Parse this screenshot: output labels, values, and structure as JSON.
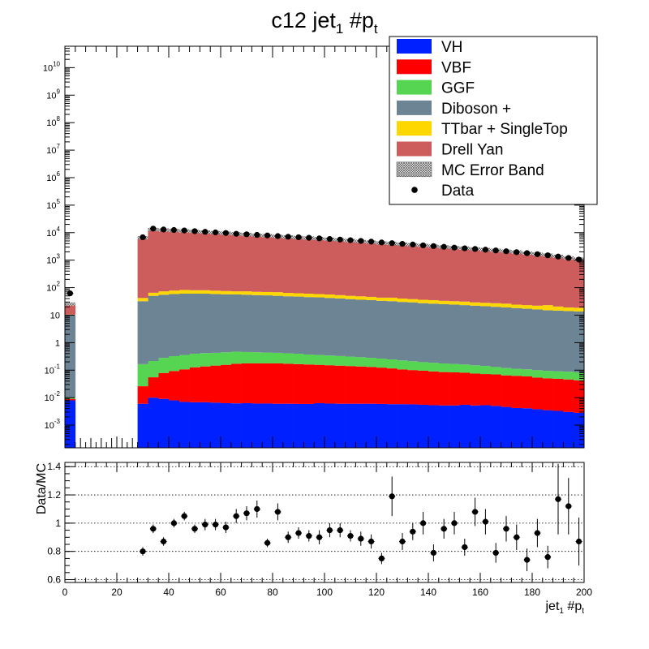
{
  "chart_data": {
    "type": "bar",
    "title": {
      "main": "c12 jet",
      "sub": "1",
      "rest": " #p",
      "sub2": "t"
    },
    "xlabel": {
      "main": "jet",
      "sub": "1",
      "rest": " #p",
      "sub2": "t"
    },
    "ratio_ylabel": "Data/MC",
    "x_ticks": [
      "0",
      "20",
      "40",
      "60",
      "80",
      "100",
      "120",
      "140",
      "160",
      "180",
      "200"
    ],
    "ratio_ticks": [
      "0.6",
      "0.8",
      "1",
      "1.2",
      "1.4"
    ],
    "log_ticks": [
      {
        "value": 0.001,
        "base": "10",
        "exp": "-3"
      },
      {
        "value": 0.01,
        "base": "10",
        "exp": "-2"
      },
      {
        "value": 0.1,
        "base": "10",
        "exp": "-1"
      },
      {
        "value": 1,
        "base": "1",
        "exp": ""
      },
      {
        "value": 10,
        "base": "10",
        "exp": ""
      },
      {
        "value": 100,
        "base": "10",
        "exp": "2"
      },
      {
        "value": 1000,
        "base": "10",
        "exp": "3"
      },
      {
        "value": 10000,
        "base": "10",
        "exp": "4"
      },
      {
        "value": 100000,
        "base": "10",
        "exp": "5"
      },
      {
        "value": 1000000,
        "base": "10",
        "exp": "6"
      },
      {
        "value": 10000000,
        "base": "10",
        "exp": "7"
      },
      {
        "value": 100000000,
        "base": "10",
        "exp": "8"
      },
      {
        "value": 1000000000,
        "base": "10",
        "exp": "9"
      },
      {
        "value": 10000000000,
        "base": "10",
        "exp": "10"
      }
    ],
    "xlim": [
      0,
      200
    ],
    "ylim_log": [
      0.00015,
      60000000000
    ],
    "ratio_ylim": [
      0.58,
      1.43
    ],
    "log_scale": true,
    "grid": {
      "main": false,
      "ratio": "dotted-horizontal"
    },
    "legend_position": "top-right",
    "bin_width": 4,
    "bins_x": [
      2,
      6,
      10,
      14,
      18,
      22,
      26,
      30,
      34,
      38,
      42,
      46,
      50,
      54,
      58,
      62,
      66,
      70,
      74,
      78,
      82,
      86,
      90,
      94,
      98,
      102,
      106,
      110,
      114,
      118,
      122,
      126,
      130,
      134,
      138,
      142,
      146,
      150,
      154,
      158,
      162,
      166,
      170,
      174,
      178,
      182,
      186,
      190,
      194,
      198
    ],
    "series": [
      {
        "name": "VH",
        "color": "#0020ff",
        "values": [
          0.008,
          0,
          0,
          0,
          0,
          0,
          0,
          0.006,
          0.01,
          0.009,
          0.008,
          0.007,
          0.0068,
          0.0068,
          0.0066,
          0.0063,
          0.0062,
          0.0063,
          0.0061,
          0.0061,
          0.006,
          0.006,
          0.0059,
          0.0059,
          0.0063,
          0.0061,
          0.006,
          0.006,
          0.006,
          0.006,
          0.0059,
          0.0058,
          0.0058,
          0.0057,
          0.0055,
          0.0053,
          0.0052,
          0.0052,
          0.0055,
          0.0052,
          0.0053,
          0.005,
          0.0046,
          0.0042,
          0.0041,
          0.0038,
          0.0035,
          0.0033,
          0.003,
          0.0028
        ]
      },
      {
        "name": "VBF",
        "color": "#ff0000",
        "values": [
          0.001,
          0,
          0,
          0,
          0,
          0,
          0,
          0.02,
          0.045,
          0.07,
          0.085,
          0.1,
          0.12,
          0.13,
          0.14,
          0.15,
          0.165,
          0.17,
          0.17,
          0.17,
          0.17,
          0.165,
          0.16,
          0.155,
          0.15,
          0.145,
          0.14,
          0.135,
          0.13,
          0.125,
          0.118,
          0.11,
          0.1,
          0.095,
          0.09,
          0.085,
          0.08,
          0.078,
          0.075,
          0.07,
          0.067,
          0.065,
          0.06,
          0.058,
          0.055,
          0.05,
          0.047,
          0.045,
          0.043,
          0.04
        ]
      },
      {
        "name": "GGF",
        "color": "#55d552",
        "values": [
          0.001,
          0,
          0,
          0,
          0,
          0,
          0,
          0.14,
          0.16,
          0.2,
          0.23,
          0.25,
          0.27,
          0.28,
          0.28,
          0.29,
          0.3,
          0.28,
          0.27,
          0.26,
          0.25,
          0.24,
          0.23,
          0.21,
          0.2,
          0.19,
          0.18,
          0.17,
          0.16,
          0.15,
          0.14,
          0.13,
          0.12,
          0.11,
          0.1,
          0.095,
          0.09,
          0.085,
          0.08,
          0.075,
          0.07,
          0.06,
          0.055,
          0.05,
          0.048,
          0.046,
          0.044,
          0.043,
          0.042,
          0.04
        ]
      },
      {
        "name": "Diboson +",
        "color": "#6d8495",
        "values": [
          10,
          0,
          0,
          0,
          0,
          0,
          0,
          32,
          50,
          55,
          58,
          60,
          60,
          60,
          58,
          57,
          56,
          55,
          53,
          52,
          50,
          48,
          47,
          45,
          44,
          42,
          40,
          38,
          36,
          35,
          33,
          32,
          30,
          29,
          27,
          26,
          25,
          24,
          23,
          22,
          21,
          20,
          19,
          18,
          17,
          16,
          15,
          14.5,
          14,
          13.5
        ]
      },
      {
        "name": "TTbar + SingleTop",
        "color": "#ffd700",
        "values": [
          0.5,
          0,
          0,
          0,
          0,
          0,
          0,
          10,
          15,
          18,
          20,
          22,
          20,
          20,
          19,
          18,
          17,
          18,
          17,
          17,
          18,
          16,
          15,
          15,
          14,
          14,
          13,
          12,
          12,
          11,
          10,
          11,
          10,
          9,
          9,
          9,
          8,
          8,
          8,
          7,
          7,
          7,
          7,
          6,
          6,
          6,
          8,
          6,
          5,
          5
        ]
      },
      {
        "name": "Drell Yan",
        "color": "#cd5c5c",
        "values": [
          15,
          0,
          0,
          0,
          0,
          0,
          0,
          6500,
          13000,
          12500,
          12000,
          11500,
          11000,
          10500,
          10000,
          9500,
          9000,
          8500,
          8000,
          7700,
          7300,
          6900,
          6600,
          6300,
          6000,
          5700,
          5400,
          5100,
          4800,
          4500,
          4200,
          4000,
          3800,
          3600,
          3400,
          3200,
          3000,
          2850,
          2700,
          2550,
          2400,
          2250,
          2100,
          1950,
          1800,
          1650,
          1500,
          1350,
          1200,
          1080
        ]
      }
    ],
    "data_points": [
      62,
      0,
      0,
      0,
      0,
      0,
      0,
      6800,
      14000,
      13000,
      12500,
      12000,
      11300,
      10700,
      10200,
      9700,
      9100,
      8700,
      8300,
      7900,
      7500,
      7100,
      6800,
      6500,
      6200,
      5900,
      5600,
      5300,
      5000,
      4700,
      4400,
      4150,
      3900,
      3700,
      3450,
      3250,
      3050,
      2850,
      2700,
      2550,
      2400,
      2250,
      2100,
      1950,
      1800,
      1650,
      1500,
      1350,
      1200,
      1050
    ],
    "ratio_points": [
      {
        "x": 30,
        "y": 0.8,
        "err": 0.03
      },
      {
        "x": 34,
        "y": 0.96,
        "err": 0.03
      },
      {
        "x": 38,
        "y": 0.87,
        "err": 0.03
      },
      {
        "x": 42,
        "y": 1.0,
        "err": 0.03
      },
      {
        "x": 46,
        "y": 1.05,
        "err": 0.03
      },
      {
        "x": 50,
        "y": 0.96,
        "err": 0.03
      },
      {
        "x": 54,
        "y": 0.99,
        "err": 0.04
      },
      {
        "x": 58,
        "y": 0.99,
        "err": 0.04
      },
      {
        "x": 62,
        "y": 0.97,
        "err": 0.04
      },
      {
        "x": 66,
        "y": 1.05,
        "err": 0.05
      },
      {
        "x": 70,
        "y": 1.07,
        "err": 0.05
      },
      {
        "x": 74,
        "y": 1.1,
        "err": 0.06
      },
      {
        "x": 78,
        "y": 0.86,
        "err": 0.03
      },
      {
        "x": 82,
        "y": 1.08,
        "err": 0.06
      },
      {
        "x": 86,
        "y": 0.9,
        "err": 0.04
      },
      {
        "x": 90,
        "y": 0.93,
        "err": 0.04
      },
      {
        "x": 94,
        "y": 0.91,
        "err": 0.04
      },
      {
        "x": 98,
        "y": 0.9,
        "err": 0.05
      },
      {
        "x": 102,
        "y": 0.95,
        "err": 0.05
      },
      {
        "x": 106,
        "y": 0.95,
        "err": 0.05
      },
      {
        "x": 110,
        "y": 0.91,
        "err": 0.04
      },
      {
        "x": 114,
        "y": 0.89,
        "err": 0.05
      },
      {
        "x": 118,
        "y": 0.87,
        "err": 0.05
      },
      {
        "x": 122,
        "y": 0.75,
        "err": 0.04
      },
      {
        "x": 126,
        "y": 1.19,
        "err": 0.14
      },
      {
        "x": 130,
        "y": 0.87,
        "err": 0.06
      },
      {
        "x": 134,
        "y": 0.94,
        "err": 0.06
      },
      {
        "x": 138,
        "y": 1.0,
        "err": 0.08
      },
      {
        "x": 142,
        "y": 0.79,
        "err": 0.06
      },
      {
        "x": 146,
        "y": 0.96,
        "err": 0.07
      },
      {
        "x": 150,
        "y": 1.0,
        "err": 0.08
      },
      {
        "x": 154,
        "y": 0.83,
        "err": 0.06
      },
      {
        "x": 158,
        "y": 1.08,
        "err": 0.1
      },
      {
        "x": 162,
        "y": 1.01,
        "err": 0.09
      },
      {
        "x": 166,
        "y": 0.79,
        "err": 0.07
      },
      {
        "x": 170,
        "y": 0.96,
        "err": 0.09
      },
      {
        "x": 174,
        "y": 0.9,
        "err": 0.09
      },
      {
        "x": 178,
        "y": 0.74,
        "err": 0.08
      },
      {
        "x": 182,
        "y": 0.93,
        "err": 0.1
      },
      {
        "x": 186,
        "y": 0.76,
        "err": 0.08
      },
      {
        "x": 190,
        "y": 1.17,
        "err": 0.25
      },
      {
        "x": 194,
        "y": 1.12,
        "err": 0.2
      },
      {
        "x": 198,
        "y": 0.87,
        "err": 0.17
      }
    ],
    "legend": [
      {
        "label": "VH",
        "kind": "box",
        "color": "#0020ff"
      },
      {
        "label": "VBF",
        "kind": "box",
        "color": "#ff0000"
      },
      {
        "label": "GGF",
        "kind": "box",
        "color": "#55d552"
      },
      {
        "label": "Diboson +",
        "kind": "box",
        "color": "#6d8495"
      },
      {
        "label": "TTbar + SingleTop",
        "kind": "box",
        "color": "#ffd700"
      },
      {
        "label": "Drell Yan",
        "kind": "box",
        "color": "#cd5c5c"
      },
      {
        "label": "MC Error Band",
        "kind": "hatch",
        "color": "#555555"
      },
      {
        "label": "Data",
        "kind": "marker",
        "color": "#000000"
      }
    ]
  }
}
